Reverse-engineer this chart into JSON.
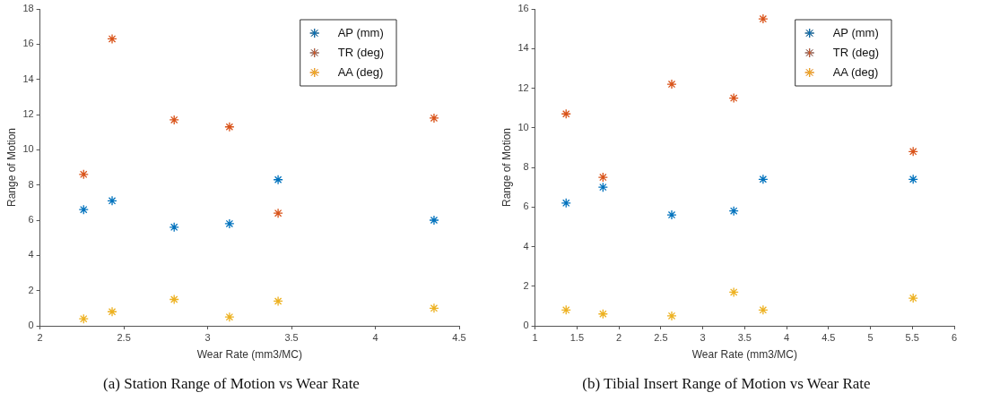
{
  "chart_data": [
    {
      "type": "scatter",
      "title": "(a) Station Range of Motion vs Wear Rate",
      "xlabel": "Wear Rate (mm3/MC)",
      "ylabel": "Range of Motion",
      "x": [
        2.26,
        2.43,
        2.8,
        3.13,
        3.42,
        4.35
      ],
      "series": [
        {
          "name": "AP (mm)",
          "color": "#0072bd",
          "values": [
            6.6,
            7.1,
            5.6,
            5.8,
            8.3,
            6.0
          ]
        },
        {
          "name": "TR (deg)",
          "color": "#d95319",
          "values": [
            8.6,
            16.3,
            11.7,
            11.3,
            6.4,
            11.8
          ]
        },
        {
          "name": "AA (deg)",
          "color": "#edb120",
          "values": [
            0.4,
            0.8,
            1.5,
            0.5,
            1.4,
            1.0
          ]
        }
      ],
      "xlim": [
        2,
        4.5
      ],
      "xticks": [
        2,
        2.5,
        3,
        3.5,
        4,
        4.5
      ],
      "ylim": [
        0,
        18
      ],
      "yticks": [
        0,
        2,
        4,
        6,
        8,
        10,
        12,
        14,
        16,
        18
      ],
      "marker": "cross",
      "grid": false,
      "legend": "top right"
    },
    {
      "type": "scatter",
      "title": "(b) Tibial Insert Range of Motion vs Wear Rate",
      "xlabel": "Wear Rate (mm3/MC)",
      "ylabel": "Range of Motion",
      "x": [
        1.37,
        1.81,
        2.63,
        3.37,
        3.72,
        5.51
      ],
      "series": [
        {
          "name": "AP (mm)",
          "color": "#0072bd",
          "values": [
            6.2,
            7.0,
            5.6,
            5.8,
            7.4,
            7.4
          ]
        },
        {
          "name": "TR (deg)",
          "color": "#d95319",
          "values": [
            10.7,
            7.5,
            12.2,
            11.5,
            15.5,
            8.8
          ]
        },
        {
          "name": "AA (deg)",
          "color": "#edb120",
          "values": [
            0.8,
            0.6,
            0.5,
            1.7,
            0.8,
            1.4
          ]
        }
      ],
      "xlim": [
        1,
        6
      ],
      "xticks": [
        1,
        1.5,
        2,
        2.5,
        3,
        3.5,
        4,
        4.5,
        5,
        5.5,
        6
      ],
      "ylim": [
        0,
        16
      ],
      "yticks": [
        0,
        2,
        4,
        6,
        8,
        10,
        12,
        14,
        16
      ],
      "marker": "cross",
      "grid": false,
      "legend": "top right"
    }
  ]
}
